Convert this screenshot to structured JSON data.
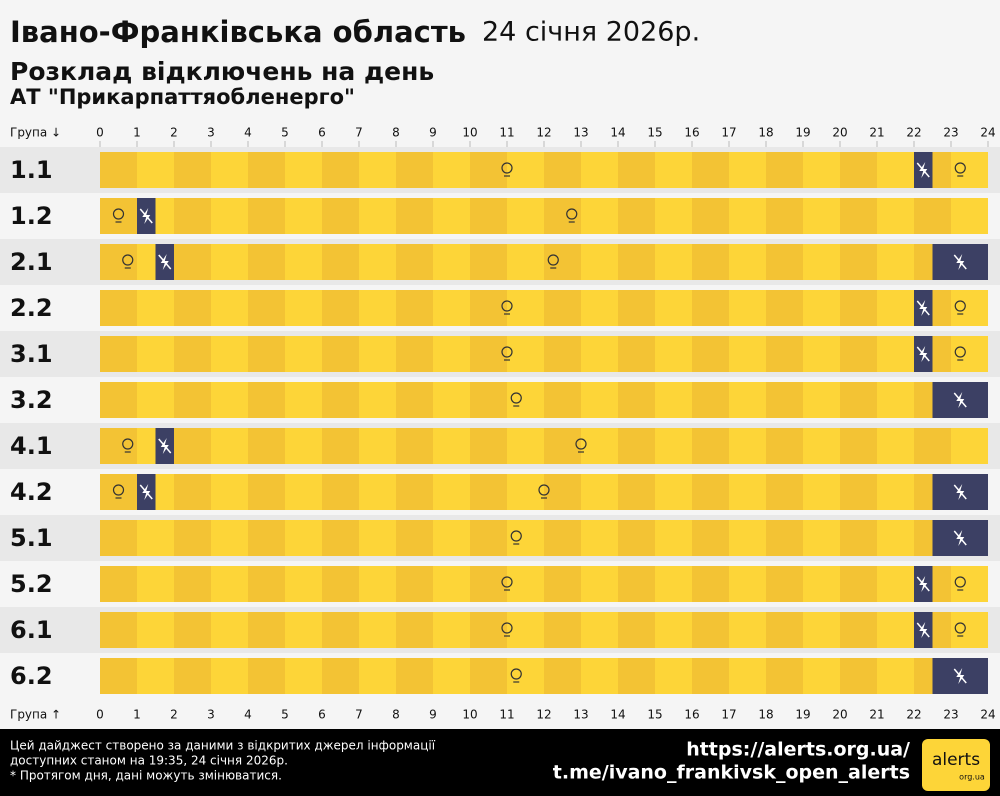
{
  "chart_data": {
    "type": "gantt",
    "title": "Івано-Франківська область",
    "date": "24 січня 2026р.",
    "subtitle": "Розклад відключень на день",
    "company": "АТ \"Прикарпаттяобленерго\"",
    "axis_label_top": "Група ↓",
    "axis_label_bottom": "Група ↑",
    "categories": [
      "1.1",
      "1.2",
      "2.1",
      "2.2",
      "3.1",
      "3.2",
      "4.1",
      "4.2",
      "5.1",
      "5.2",
      "6.1",
      "6.2"
    ],
    "outages": [
      [
        [
          22,
          22.5
        ]
      ],
      [
        [
          1,
          1.5
        ]
      ],
      [
        [
          1.5,
          2
        ],
        [
          22.5,
          24
        ]
      ],
      [
        [
          22,
          22.5
        ]
      ],
      [
        [
          22,
          22.5
        ]
      ],
      [
        [
          22.5,
          24
        ]
      ],
      [
        [
          1.5,
          2
        ]
      ],
      [
        [
          1,
          1.5
        ],
        [
          22.5,
          24
        ]
      ],
      [
        [
          22.5,
          24
        ]
      ],
      [
        [
          22,
          22.5
        ]
      ],
      [
        [
          22,
          22.5
        ]
      ],
      [
        [
          22.5,
          24
        ]
      ]
    ],
    "xlim": [
      0,
      24
    ],
    "xticks": [
      0,
      1,
      2,
      3,
      4,
      5,
      6,
      7,
      8,
      9,
      10,
      11,
      12,
      13,
      14,
      15,
      16,
      17,
      18,
      19,
      20,
      21,
      22,
      23,
      24
    ],
    "colors": {
      "on": "#fdd538",
      "on_alt": "#f3c334",
      "off": "#3c4064"
    }
  },
  "footer": {
    "note": [
      "Цей дайджест створено за даними з відкритих джерел інформації",
      "доступних станом на 19:35, 24 січня 2026р.",
      "* Протягом дня, дані можуть змінюватися."
    ],
    "links": [
      "https://alerts.org.ua/",
      "t.me/ivano_frankivsk_open_alerts"
    ],
    "logo": "alerts",
    "logo_sub": "org.ua"
  }
}
